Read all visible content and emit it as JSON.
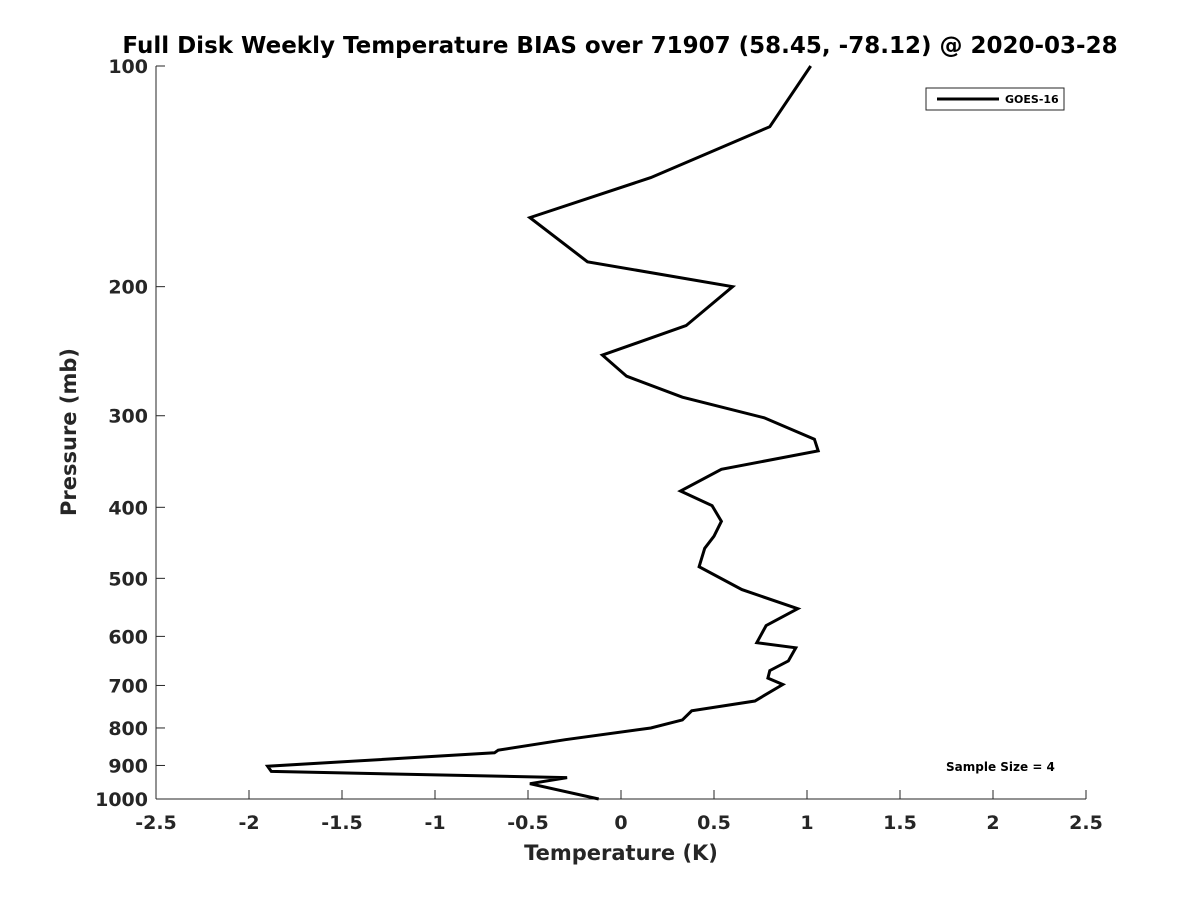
{
  "chart_data": {
    "type": "line",
    "title": "Full Disk Weekly Temperature BIAS over 71907 (58.45, -78.12) @ 2020-03-28",
    "xlabel": "Temperature (K)",
    "ylabel": "Pressure (mb)",
    "xlim": [
      -2.5,
      2.5
    ],
    "ylim": [
      1000,
      100
    ],
    "yscale": "log",
    "y_reversed": true,
    "xticks": [
      -2.5,
      -2,
      -1.5,
      -1,
      -0.5,
      0,
      0.5,
      1,
      1.5,
      2,
      2.5
    ],
    "xtick_labels": [
      "-2.5",
      "-2",
      "-1.5",
      "-1",
      "-0.5",
      "0",
      "0.5",
      "1",
      "1.5",
      "2",
      "2.5"
    ],
    "yticks": [
      100,
      200,
      300,
      400,
      500,
      600,
      700,
      800,
      900,
      1000
    ],
    "ytick_labels": [
      "100",
      "200",
      "300",
      "400",
      "500",
      "600",
      "700",
      "800",
      "900",
      "1000"
    ],
    "grid": false,
    "legend_position": "top-right",
    "series": [
      {
        "name": "GOES-16",
        "color": "#000000",
        "x": [
          1.02,
          0.8,
          0.16,
          -0.49,
          -0.18,
          0.6,
          0.35,
          -0.1,
          0.03,
          0.33,
          0.77,
          1.04,
          1.06,
          0.54,
          0.32,
          0.49,
          0.54,
          0.5,
          0.45,
          0.42,
          0.65,
          0.95,
          0.78,
          0.73,
          0.94,
          0.9,
          0.8,
          0.79,
          0.87,
          0.72,
          0.38,
          0.33,
          0.16,
          -0.3,
          -0.66,
          -0.68,
          -1.9,
          -1.88,
          -0.29,
          -0.49,
          -0.12
        ],
        "y": [
          100,
          121,
          142,
          161,
          185,
          200,
          226,
          248,
          265,
          283,
          302,
          323,
          335,
          355,
          380,
          398,
          418,
          438,
          455,
          482,
          518,
          550,
          580,
          612,
          622,
          648,
          668,
          684,
          698,
          735,
          758,
          780,
          800,
          830,
          858,
          865,
          902,
          917,
          935,
          953,
          1000
        ]
      }
    ],
    "annotations": [
      "Sample Size = 4"
    ]
  }
}
